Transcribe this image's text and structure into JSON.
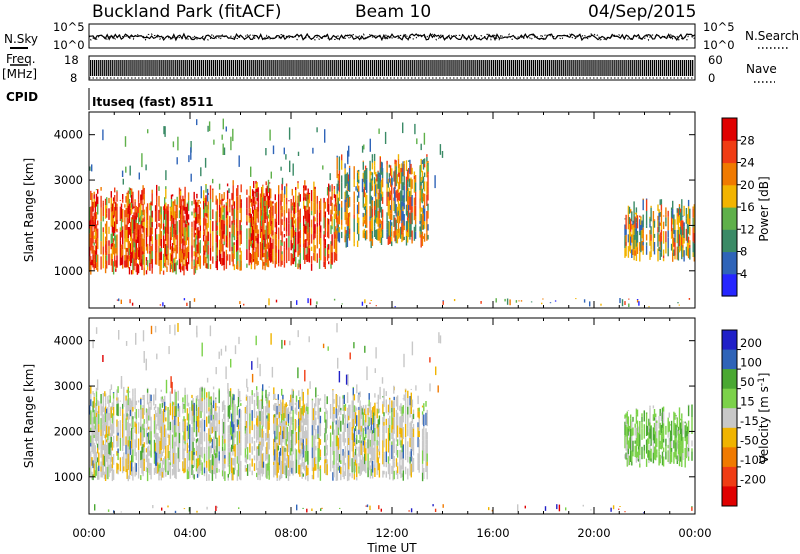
{
  "header": {
    "station": "Buckland Park (fitACF)",
    "beam": "Beam 10",
    "date": "04/Sep/2015"
  },
  "noise_panel": {
    "left_label": "N.Sky",
    "right_label": "N.Search",
    "ticks": [
      "10^5",
      "10^0"
    ],
    "right_ticks": [
      "10^5",
      "10^0"
    ]
  },
  "freq_panel": {
    "left_label_top": "Freq.",
    "left_label_unit": "[MHz]",
    "left_ticks": [
      "18",
      "8"
    ],
    "right_label": "Nave",
    "right_ticks": [
      "60",
      "0"
    ]
  },
  "cpid": {
    "label": "CPID",
    "value": "Ituseq (fast) 8511"
  },
  "chart_data": [
    {
      "type": "heatmap",
      "name": "Power",
      "ylabel": "Slant Range [km]",
      "ylim": [
        180,
        4500
      ],
      "y_ticks": [
        "1000",
        "2000",
        "3000",
        "4000"
      ],
      "y_tick_values": [
        1000,
        2000,
        3000,
        4000
      ],
      "xlim_hours": [
        0,
        24
      ],
      "colorbar": {
        "label": "Power [dB]",
        "range": [
          0,
          32
        ],
        "ticks": [
          "4",
          "8",
          "12",
          "16",
          "20",
          "24",
          "28"
        ],
        "colors": [
          "#2626ff",
          "#2f64b8",
          "#3a8a66",
          "#5fb04a",
          "#f2b400",
          "#f07a00",
          "#f03c14",
          "#e00000"
        ]
      },
      "regions": [
        {
          "start_hour": 0.0,
          "end_hour": 4.2,
          "range_km": [
            900,
            2900
          ],
          "level": "high"
        },
        {
          "start_hour": 4.2,
          "end_hour": 9.8,
          "range_km": [
            1000,
            3000
          ],
          "level": "high"
        },
        {
          "start_hour": 9.8,
          "end_hour": 13.4,
          "range_km": [
            1500,
            3600
          ],
          "level": "medium"
        },
        {
          "start_hour": 21.2,
          "end_hour": 24.0,
          "range_km": [
            1200,
            2600
          ],
          "level": "medium"
        },
        {
          "start_hour": 0.0,
          "end_hour": 24.0,
          "range_km": [
            200,
            400
          ],
          "level": "mixed"
        }
      ]
    },
    {
      "type": "heatmap",
      "name": "Velocity",
      "ylabel": "Slant Range [km]",
      "ylim": [
        180,
        4500
      ],
      "y_ticks": [
        "1000",
        "2000",
        "3000",
        "4000"
      ],
      "y_tick_values": [
        1000,
        2000,
        3000,
        4000
      ],
      "xlim_hours": [
        0,
        24
      ],
      "x_ticks": [
        "00:00",
        "04:00",
        "08:00",
        "12:00",
        "16:00",
        "20:00",
        "00:00"
      ],
      "x_tick_values": [
        0,
        4,
        8,
        12,
        16,
        20,
        24
      ],
      "xlabel": "Time UT",
      "colorbar": {
        "label": "Velocity [m s-1]",
        "ticks": [
          "200",
          "100",
          "50",
          "15",
          "-15",
          "-50",
          "-100",
          "-200"
        ],
        "colors": [
          "#2020c8",
          "#2f64b8",
          "#4aa832",
          "#7cd24a",
          "#c8c8c8",
          "#f0b400",
          "#f07a00",
          "#f03c14",
          "#e00000"
        ]
      },
      "regions": [
        {
          "start_hour": 0.0,
          "end_hour": 13.4,
          "range_km": [
            900,
            3000
          ],
          "dominant": "ground scatter"
        },
        {
          "start_hour": 21.2,
          "end_hour": 24.0,
          "range_km": [
            1200,
            2600
          ],
          "dominant": "15 to 50"
        },
        {
          "start_hour": 0.0,
          "end_hour": 24.0,
          "range_km": [
            200,
            400
          ],
          "dominant": "mixed"
        }
      ]
    }
  ]
}
